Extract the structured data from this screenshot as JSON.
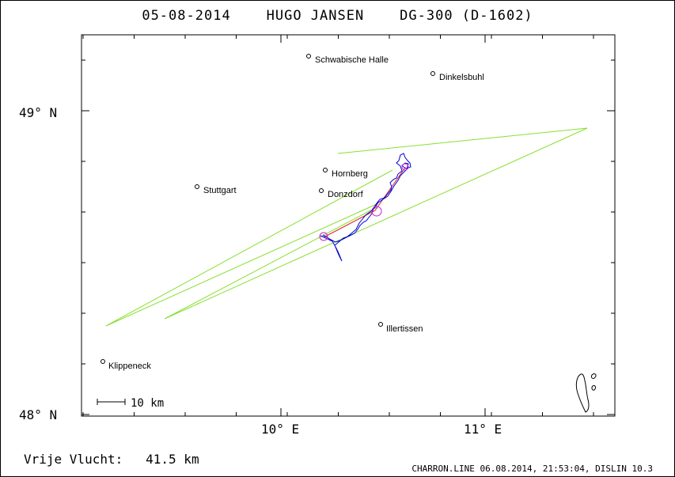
{
  "header": {
    "title": "05-08-2014    HUGO JANSEN    DG-300 (D-1602)"
  },
  "map": {
    "lat_ticks": [
      {
        "label": "49° N",
        "lat": 49.0
      },
      {
        "label": "48° N",
        "lat": 48.0
      }
    ],
    "lon_ticks": [
      {
        "label": "10° E",
        "lon": 10.0
      },
      {
        "label": "11° E",
        "lon": 11.0
      }
    ],
    "towns": [
      {
        "name": "Schwabische Halle",
        "lon": 10.14,
        "lat": 49.18
      },
      {
        "name": "Dinkelsbuhl",
        "lon": 10.73,
        "lat": 49.12
      },
      {
        "name": "Hornberg",
        "lon": 10.22,
        "lat": 48.81
      },
      {
        "name": "Stuttgart",
        "lon": 9.59,
        "lat": 48.75
      },
      {
        "name": "Donzdorf",
        "lon": 10.2,
        "lat": 48.74
      },
      {
        "name": "Illertissen",
        "lon": 10.49,
        "lat": 48.3
      },
      {
        "name": "Klippeneck",
        "lon": 9.1,
        "lat": 48.17
      }
    ],
    "scale_bar": {
      "label": "10 km"
    },
    "colors": {
      "task_lines": "#88e030",
      "flight_track": "#0000d0",
      "leg_line": "#e02020",
      "turnpoint_circle": "#d020d0"
    }
  },
  "footer": {
    "distance_label": "Vrije Vlucht:",
    "distance_value": "41.5 km",
    "credits": "CHARRON.LINE 06.08.2014, 21:53:04, DISLIN 10.3"
  }
}
